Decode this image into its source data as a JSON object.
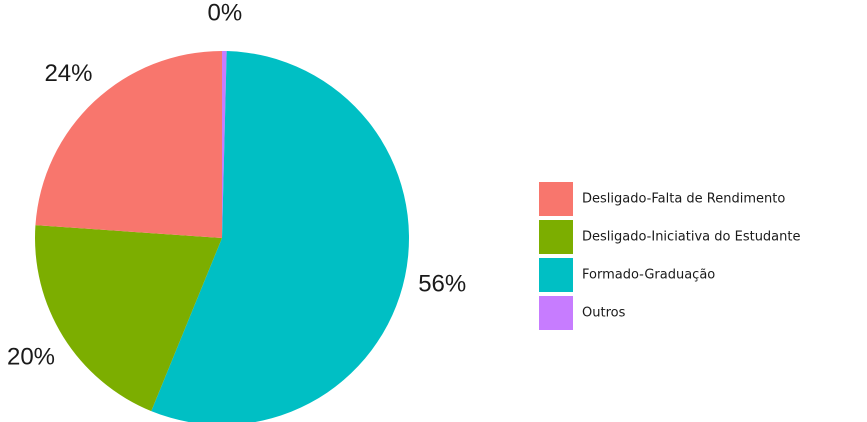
{
  "chart_data": {
    "type": "pie",
    "title": "",
    "slices": [
      {
        "label": "Desligado-Falta de Rendimento",
        "value": 24,
        "display": "24%",
        "color": "#F8766D"
      },
      {
        "label": "Desligado-Iniciativa do Estudante",
        "value": 20,
        "display": "20%",
        "color": "#7CAE00"
      },
      {
        "label": "Formado-Graduação",
        "value": 56,
        "display": "56%",
        "color": "#00BFC4"
      },
      {
        "label": "Outros",
        "value": 0.4,
        "display": "0%",
        "color": "#C77CFF"
      }
    ],
    "legend": {
      "position": "right",
      "entries": [
        "Desligado-Falta de Rendimento",
        "Desligado-Iniciativa do Estudante",
        "Formado-Graduação",
        "Outros"
      ]
    }
  }
}
